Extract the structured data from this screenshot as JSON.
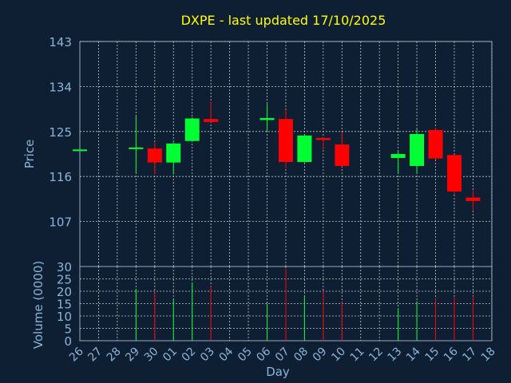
{
  "chart_data": {
    "type": "candlestick",
    "title": "DXPE - last updated 17/10/2025",
    "xlabel": "Day",
    "ylabel_price": "Price",
    "ylabel_volume": "Volume (0000)",
    "price_ticks": [
      "143",
      "134",
      "125",
      "116",
      "107"
    ],
    "price_tick_values": [
      143,
      134,
      125,
      116,
      107
    ],
    "price_ylim": [
      98,
      143
    ],
    "volume_ticks": [
      "30",
      "25",
      "20",
      "15",
      "10",
      "5",
      "0"
    ],
    "volume_tick_values": [
      30,
      25,
      20,
      15,
      10,
      5,
      0
    ],
    "volume_ylim": [
      0,
      30
    ],
    "x_ticks": [
      "26",
      "27",
      "28",
      "29",
      "30",
      "01",
      "02",
      "03",
      "04",
      "05",
      "06",
      "07",
      "08",
      "09",
      "10",
      "11",
      "12",
      "13",
      "14",
      "15",
      "16",
      "17",
      "18"
    ],
    "grid": true,
    "colors": {
      "background": "#0f1f33",
      "up": "#00ff33",
      "down": "#ff0000",
      "title": "#ffff00",
      "axis": "#8ab4d8",
      "grid": "#c8c8c8",
      "frame": "#9aa9c2"
    },
    "candles": [
      {
        "day": "26",
        "open": 121.3,
        "high": 121.6,
        "low": 121.1,
        "close": 121.4,
        "volume": 0
      },
      {
        "day": "29",
        "open": 121.6,
        "high": 128.0,
        "low": 116.7,
        "close": 121.8,
        "volume": 21
      },
      {
        "day": "30",
        "open": 121.6,
        "high": 122.8,
        "low": 116.5,
        "close": 118.8,
        "volume": 19.5
      },
      {
        "day": "01",
        "open": 118.8,
        "high": 122.8,
        "low": 116.4,
        "close": 122.6,
        "volume": 17
      },
      {
        "day": "02",
        "open": 123.1,
        "high": 127.8,
        "low": 123.1,
        "close": 127.6,
        "volume": 23.5
      },
      {
        "day": "03",
        "open": 127.5,
        "high": 131.0,
        "low": 126.9,
        "close": 126.9,
        "volume": 22
      },
      {
        "day": "06",
        "open": 127.3,
        "high": 130.5,
        "low": 124.8,
        "close": 127.7,
        "volume": 15
      },
      {
        "day": "07",
        "open": 127.5,
        "high": 129.3,
        "low": 117.7,
        "close": 118.9,
        "volume": 29
      },
      {
        "day": "08",
        "open": 118.9,
        "high": 124.3,
        "low": 118.8,
        "close": 124.2,
        "volume": 18
      },
      {
        "day": "09",
        "open": 123.7,
        "high": 123.8,
        "low": 121.4,
        "close": 123.3,
        "volume": 20
      },
      {
        "day": "10",
        "open": 122.4,
        "high": 124.8,
        "low": 118.0,
        "close": 118.1,
        "volume": 15.5
      },
      {
        "day": "13",
        "open": 119.7,
        "high": 121.1,
        "low": 116.6,
        "close": 120.5,
        "volume": 13
      },
      {
        "day": "14",
        "open": 118.1,
        "high": 125.5,
        "low": 116.6,
        "close": 124.5,
        "volume": 16
      },
      {
        "day": "15",
        "open": 125.3,
        "high": 125.8,
        "low": 119.4,
        "close": 119.6,
        "volume": 17
      },
      {
        "day": "16",
        "open": 120.3,
        "high": 120.3,
        "low": 112.4,
        "close": 113.0,
        "volume": 17.5
      },
      {
        "day": "17",
        "open": 111.8,
        "high": 113.2,
        "low": 109.3,
        "close": 111.1,
        "volume": 18
      }
    ]
  }
}
